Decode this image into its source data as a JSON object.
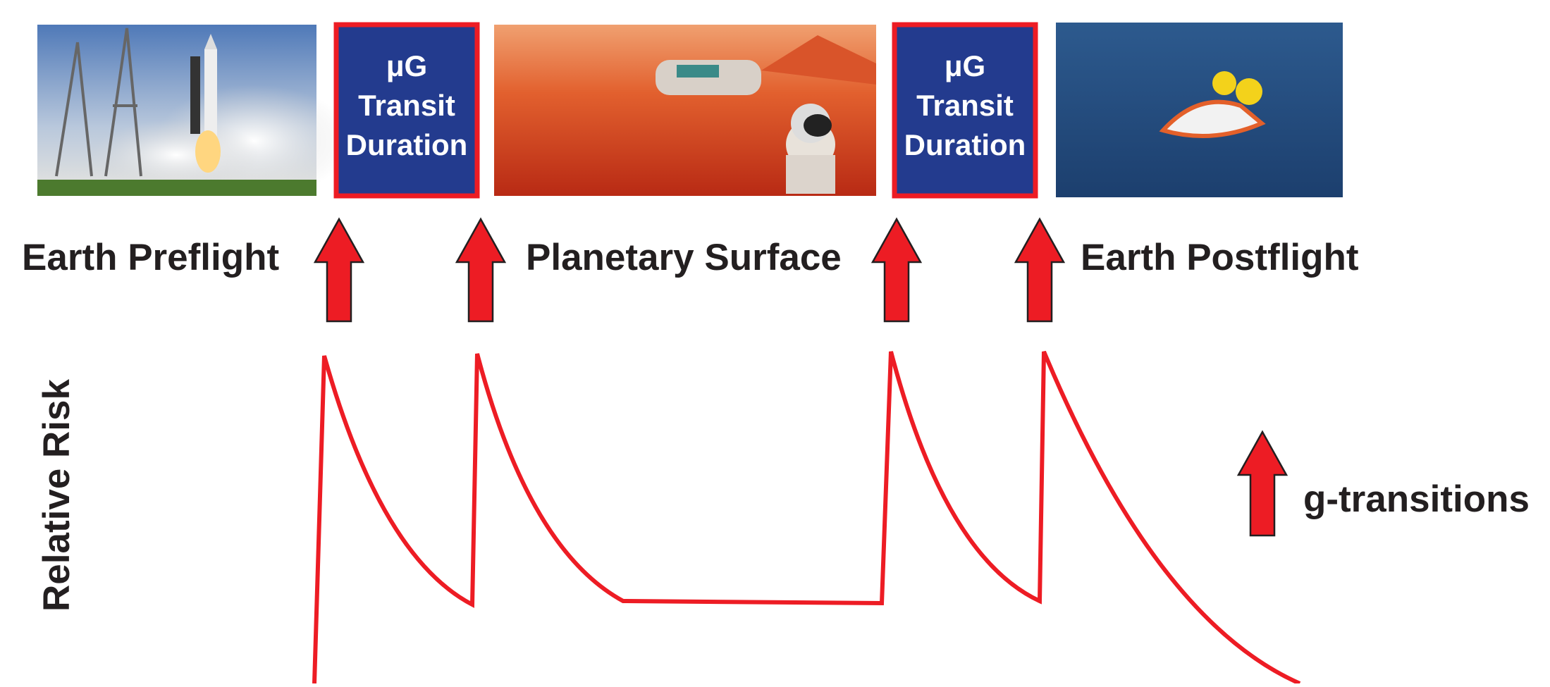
{
  "phases": {
    "preflight": "Earth Preflight",
    "surface": "Planetary Surface",
    "postflight": "Earth Postflight"
  },
  "transit_boxes": [
    {
      "lines": [
        "μG",
        "Transit",
        "Duration"
      ]
    },
    {
      "lines": [
        "μG",
        "Transit",
        "Duration"
      ]
    }
  ],
  "axis_label": "Relative Risk",
  "legend": {
    "label": "g-transitions"
  }
}
